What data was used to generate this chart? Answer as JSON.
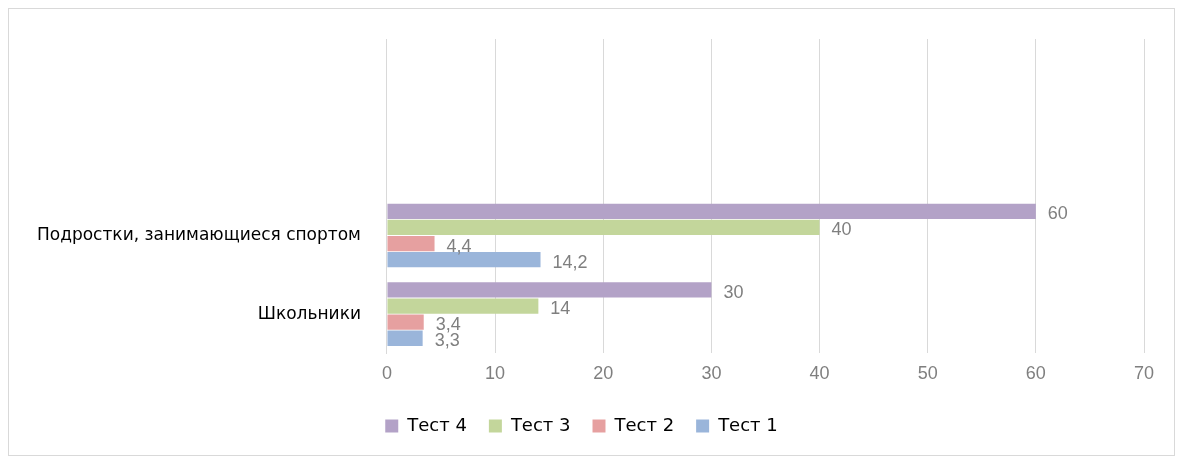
{
  "chart_data": {
    "type": "bar",
    "orientation": "horizontal",
    "categories": [
      null,
      null,
      "Подростки, занимающиеся спортом",
      "Школьники"
    ],
    "series": [
      {
        "name": "Тест 4",
        "color": "#b3a2c7",
        "values": [
          null,
          null,
          60,
          30
        ],
        "value_labels": [
          null,
          null,
          "60",
          "30"
        ]
      },
      {
        "name": "Тест 3",
        "color": "#c3d69b",
        "values": [
          null,
          null,
          40,
          14
        ],
        "value_labels": [
          null,
          null,
          "40",
          "14"
        ]
      },
      {
        "name": "Тест 2",
        "color": "#e6a0a0",
        "values": [
          null,
          null,
          4.4,
          3.4
        ],
        "value_labels": [
          null,
          null,
          "4,4",
          "3,4"
        ]
      },
      {
        "name": "Тест 1",
        "color": "#9ab5da",
        "values": [
          null,
          null,
          14.2,
          3.3
        ],
        "value_labels": [
          null,
          null,
          "14,2",
          "3,3"
        ]
      }
    ],
    "xlim": [
      0,
      70
    ],
    "xticks": [
      0,
      10,
      20,
      30,
      40,
      50,
      60,
      70
    ],
    "grid": "x",
    "legend": "bottom"
  }
}
